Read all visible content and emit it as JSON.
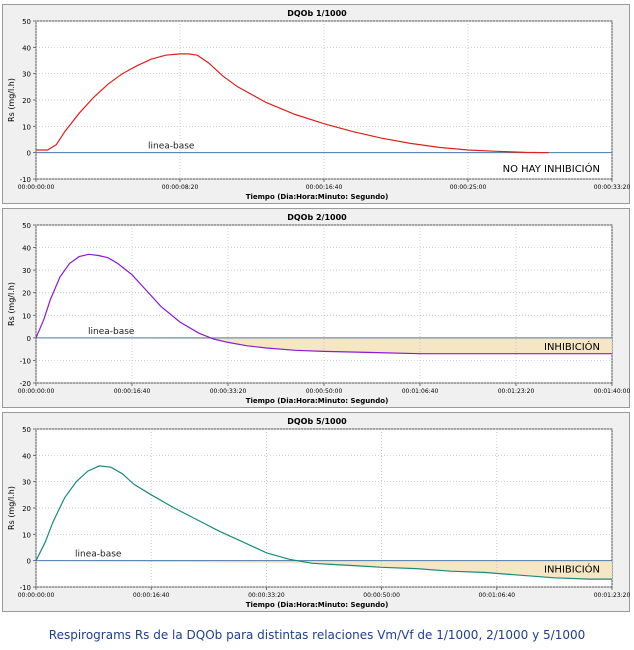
{
  "caption": "Respirograms Rs de la DQOb para distintas relaciones Vm/Vf de 1/1000, 2/1000 y 5/1000",
  "colors": {
    "panel_bg": "#f0f0f0",
    "plot_bg": "#ffffff",
    "grid": "#b8b8b8",
    "baseline": "#4a78b0",
    "inhibition_fill": "#f5e6c4"
  },
  "chart_data": [
    {
      "type": "line",
      "title": "DQOb 1/1000",
      "xlabel": "Tiempo (Dia:Hora:Minuto: Segundo)",
      "ylabel": "Rs (mg/l.h)",
      "ylim": [
        -10,
        50
      ],
      "yticks": [
        -10,
        0,
        10,
        20,
        30,
        40,
        50
      ],
      "xlim_seconds": [
        0,
        2000
      ],
      "x_unit": "seconds",
      "xtick_labels": [
        "00:00:00:00",
        "00:00:08:20",
        "00:00:16:40",
        "00:00:25:00",
        "00:00:33:20"
      ],
      "grid": true,
      "baseline_label": "linea-base",
      "annotation": "NO HAY INHIBICIÓN",
      "inhibition_region": false,
      "series": [
        {
          "color": "#e0201c",
          "x": [
            0,
            40,
            70,
            100,
            150,
            200,
            250,
            300,
            350,
            400,
            450,
            500,
            530,
            560,
            600,
            650,
            700,
            800,
            900,
            1000,
            1100,
            1200,
            1300,
            1400,
            1500,
            1600,
            1700,
            1780
          ],
          "y": [
            1,
            1,
            3,
            8,
            15,
            21,
            26,
            30,
            33,
            35.5,
            37,
            37.5,
            37.5,
            37,
            34,
            29,
            25,
            19,
            14.5,
            11,
            8,
            5.5,
            3.5,
            2,
            1,
            0.5,
            0.1,
            0
          ]
        }
      ]
    },
    {
      "type": "line",
      "title": "DQOb 2/1000",
      "xlabel": "Tiempo (Dia:Hora:Minuto: Segundo)",
      "ylabel": "Rs (mg/l.h)",
      "ylim": [
        -20,
        50
      ],
      "yticks": [
        -20,
        -10,
        0,
        10,
        20,
        30,
        40,
        50
      ],
      "xlim_seconds": [
        0,
        6000
      ],
      "x_unit": "seconds",
      "xtick_labels": [
        "00:00:00:00",
        "00:00:16:40",
        "00:00:33:20",
        "00:00:50:00",
        "00:01:06:40",
        "00:01:23:20",
        "00:01:40:00"
      ],
      "grid": true,
      "baseline_label": "linea-base",
      "annotation": "INHIBICIÓN",
      "inhibition_region": true,
      "series": [
        {
          "color": "#8a1ad8",
          "x": [
            0,
            80,
            150,
            250,
            350,
            450,
            550,
            650,
            750,
            850,
            1000,
            1150,
            1300,
            1500,
            1700,
            1850,
            2000,
            2200,
            2400,
            2700,
            3000,
            3500,
            4000,
            4500,
            5000,
            5500,
            6000
          ],
          "y": [
            0,
            8,
            17,
            27,
            33,
            36,
            37,
            36.5,
            35.5,
            33,
            28,
            21,
            14,
            7,
            2,
            -0.5,
            -2,
            -3.5,
            -4.5,
            -5.5,
            -6,
            -6.5,
            -7,
            -7,
            -7,
            -7,
            -7
          ]
        }
      ]
    },
    {
      "type": "line",
      "title": "DQOb 5/1000",
      "xlabel": "Tiempo (Dia:Hora:Minuto: Segundo)",
      "ylabel": "Rs (mg/l.h)",
      "ylim": [
        -10,
        50
      ],
      "yticks": [
        -10,
        0,
        10,
        20,
        30,
        40,
        50
      ],
      "xlim_seconds": [
        0,
        5000
      ],
      "x_unit": "seconds",
      "xtick_labels": [
        "00:00:00:00",
        "00:00:16:40",
        "00:00:33:20",
        "00:00:50:00",
        "00:01:06:40",
        "00:01:23:20"
      ],
      "grid": true,
      "baseline_label": "linea-base",
      "annotation": "INHIBICIÓN",
      "inhibition_region": true,
      "series": [
        {
          "color": "#1a8a80",
          "x": [
            0,
            80,
            150,
            250,
            350,
            450,
            550,
            650,
            750,
            850,
            1000,
            1200,
            1400,
            1600,
            1800,
            2000,
            2200,
            2400,
            2600,
            2800,
            3000,
            3300,
            3600,
            3900,
            4200,
            4500,
            4800,
            5000
          ],
          "y": [
            0,
            7,
            15,
            24,
            30,
            34,
            36,
            35.5,
            33,
            29,
            25,
            20,
            15.5,
            11,
            7,
            3,
            0.5,
            -1,
            -1.5,
            -2,
            -2.5,
            -3,
            -4,
            -4.5,
            -5.5,
            -6.5,
            -7,
            -7
          ]
        }
      ]
    }
  ]
}
